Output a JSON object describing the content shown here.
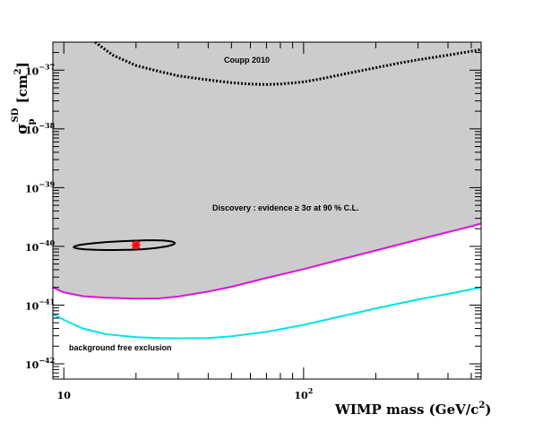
{
  "chart_data": {
    "type": "line",
    "title": "",
    "xlabel": {
      "main": "WIMP mass (GeV/c",
      "sup": "2",
      "close": ")"
    },
    "ylabel": {
      "sigma": "σ",
      "sub": "p",
      "sup": "SD",
      "unit": " [cm",
      "unit_sup": "2",
      "close": "]"
    },
    "x_scale": "log",
    "y_scale": "log",
    "xlim": [
      9,
      550
    ],
    "ylim": [
      5.5e-43,
      3e-37
    ],
    "x_ticks": [
      {
        "value": 10,
        "label": "10"
      },
      {
        "value": 100,
        "label": "10",
        "sup": "2"
      }
    ],
    "y_ticks": [
      {
        "value": 1e-37,
        "label": "10",
        "sup": "−37"
      },
      {
        "value": 1e-38,
        "label": "10",
        "sup": "−38"
      },
      {
        "value": 1e-39,
        "label": "10",
        "sup": "−39"
      },
      {
        "value": 1e-40,
        "label": "10",
        "sup": "−40"
      },
      {
        "value": 1e-41,
        "label": "10",
        "sup": "−41"
      },
      {
        "value": 1e-42,
        "label": "10",
        "sup": "−42"
      }
    ],
    "grid": false,
    "series": [
      {
        "name": "Coupp 2010",
        "style": "dotted",
        "color": "#000000",
        "x": [
          13.5,
          16,
          20,
          25,
          30,
          40,
          50,
          60,
          70,
          80,
          100,
          120,
          150,
          200,
          250,
          300,
          400,
          500,
          550
        ],
        "y": [
          3e-37,
          1.8e-37,
          1.2e-37,
          9.5e-38,
          8e-38,
          6.8e-38,
          6.1e-38,
          5.8e-38,
          5.7e-38,
          5.8e-38,
          6.3e-38,
          7.2e-38,
          8.7e-38,
          1.1e-37,
          1.32e-37,
          1.5e-37,
          1.8e-37,
          2.1e-37,
          2.25e-37
        ]
      },
      {
        "name": "Discovery : evidence ≥ 3σ at 90 % C.L.",
        "style": "solid",
        "color": "#e010e0",
        "x": [
          9,
          10,
          12,
          15,
          20,
          25,
          30,
          40,
          50,
          70,
          100,
          150,
          200,
          300,
          400,
          500,
          550
        ],
        "y": [
          2e-41,
          1.65e-41,
          1.42e-41,
          1.33e-41,
          1.29e-41,
          1.3e-41,
          1.4e-41,
          1.7e-41,
          2.05e-41,
          2.9e-41,
          4.1e-41,
          6.3e-41,
          8.5e-41,
          1.3e-40,
          1.75e-40,
          2.2e-40,
          2.45e-40
        ]
      },
      {
        "name": "background free exclusion",
        "style": "solid",
        "color": "#00e5e5",
        "x": [
          9,
          10,
          12,
          15,
          20,
          25,
          30,
          40,
          50,
          70,
          100,
          150,
          200,
          300,
          400,
          500,
          550
        ],
        "y": [
          7e-42,
          5.6e-42,
          4e-42,
          3.2e-42,
          2.85e-42,
          2.75e-42,
          2.72e-42,
          2.75e-42,
          2.95e-42,
          3.5e-42,
          4.6e-42,
          6.7e-42,
          8.8e-42,
          1.25e-41,
          1.55e-41,
          1.85e-41,
          2e-41
        ]
      }
    ],
    "fill_region": {
      "color": "#cccccc",
      "between": [
        "Discovery : evidence ≥ 3σ at 90 % C.L.",
        "top"
      ]
    },
    "contour": {
      "center_x": 20,
      "center_y": 1.05e-40,
      "x_min": 11,
      "x_max": 29,
      "y_min": 8.8e-41,
      "y_max": 1.25e-40,
      "color": "#000000"
    },
    "marker": {
      "x": 20,
      "y": 1.05e-40,
      "color": "#ff0000",
      "symbol": "star"
    },
    "annotations": [
      {
        "text": "Coupp 2010",
        "x": 17000,
        "y": 1.45e-37
      },
      {
        "text": "Discovery : evidence    ≥ 3σ  at  90 % C.L.",
        "x": 12000,
        "y": 2.1e-40
      },
      {
        "text": "background free exclusion",
        "x": 10.2,
        "y": 1.85e-42
      }
    ]
  }
}
